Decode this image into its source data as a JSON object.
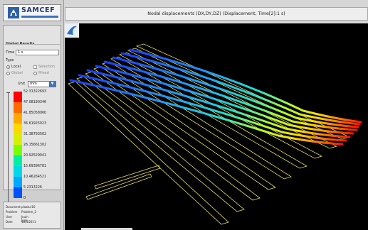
{
  "app": {
    "logo_text": "SAMCEF"
  },
  "view": {
    "title": "Nodal displacements (DX,DY,DZ) (Displacement, Time[2]:1 s)"
  },
  "global_results": {
    "title": "Global Results",
    "time_label": "Time",
    "time_value": "1 s",
    "type_label": "Type",
    "options": {
      "local": "Local",
      "selection": "Selection",
      "global": "Global",
      "mixed": "Mixed"
    },
    "selected_type": "Local",
    "unit_label": "Unit",
    "unit_value": "mm"
  },
  "legend": {
    "values": [
      "52.31322693",
      "47.08190346",
      "41.85058060",
      "36.61925023",
      "31.38793562",
      "26.15661302",
      "20.92529041",
      "15.69396781",
      "10.46264521",
      "5.2313226",
      "0"
    ],
    "colors": [
      "#ff0000",
      "#ff6a00",
      "#ffa800",
      "#ffd800",
      "#d8f000",
      "#78ff00",
      "#00f0a0",
      "#00d8e8",
      "#00a8ff",
      "#0050ff"
    ]
  },
  "document_info": {
    "rows": [
      {
        "label": "Document",
        "value": "plaatur16"
      },
      {
        "label": "Problem",
        "value": "Problem_2"
      },
      {
        "label": "User",
        "value": "Jouin Jone"
      },
      {
        "label": "Date",
        "value": "18/4/2011"
      }
    ]
  }
}
